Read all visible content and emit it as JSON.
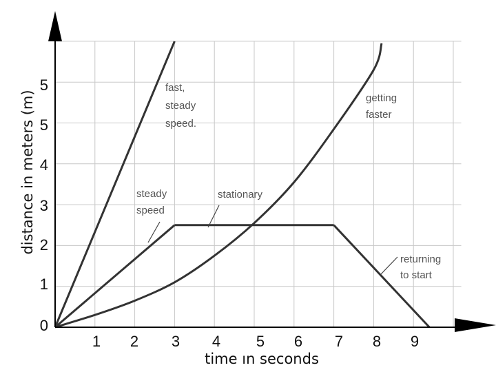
{
  "chart_data": {
    "type": "line",
    "xlabel": "time ın seconds",
    "ylabel": "distance in meters (m)",
    "xlim": [
      0,
      10.5
    ],
    "ylim": [
      0,
      7
    ],
    "x_ticks": [
      "1",
      "2",
      "3",
      "4",
      "5",
      "6",
      "7",
      "8",
      "9"
    ],
    "y_ticks": [
      "0",
      "1",
      "2",
      "3",
      "4",
      "5",
      "5"
    ],
    "grid": true,
    "series": [
      {
        "name": "fast, steady speed.",
        "points": [
          [
            0,
            0
          ],
          [
            3,
            7
          ]
        ]
      },
      {
        "name": "steady speed",
        "points": [
          [
            0,
            0
          ],
          [
            3,
            2.5
          ]
        ]
      },
      {
        "name": "stationary",
        "points": [
          [
            3,
            2.5
          ],
          [
            7,
            2.5
          ]
        ]
      },
      {
        "name": "returning to start",
        "points": [
          [
            7,
            2.5
          ],
          [
            9.4,
            0
          ]
        ]
      },
      {
        "name": "getting faster",
        "points": [
          [
            0,
            0
          ],
          [
            1,
            0.3
          ],
          [
            2,
            0.65
          ],
          [
            3,
            1.1
          ],
          [
            4,
            1.75
          ],
          [
            5,
            2.55
          ],
          [
            6,
            3.55
          ],
          [
            7,
            4.85
          ],
          [
            8,
            6.3
          ],
          [
            8.2,
            6.95
          ]
        ]
      }
    ],
    "annotations": [
      {
        "lines": [
          "fast,",
          "steady",
          "speed."
        ],
        "for": "fast, steady speed."
      },
      {
        "lines": [
          "steady",
          "speed"
        ],
        "for": "steady speed"
      },
      {
        "lines": [
          "stationary"
        ],
        "for": "stationary"
      },
      {
        "lines": [
          "getting",
          "faster"
        ],
        "for": "getting faster"
      },
      {
        "lines": [
          "returning",
          "to start"
        ],
        "for": "returning to start"
      }
    ],
    "colors": {
      "line": "#333333",
      "grid": "#c8c8c8",
      "axis": "#000000"
    }
  }
}
